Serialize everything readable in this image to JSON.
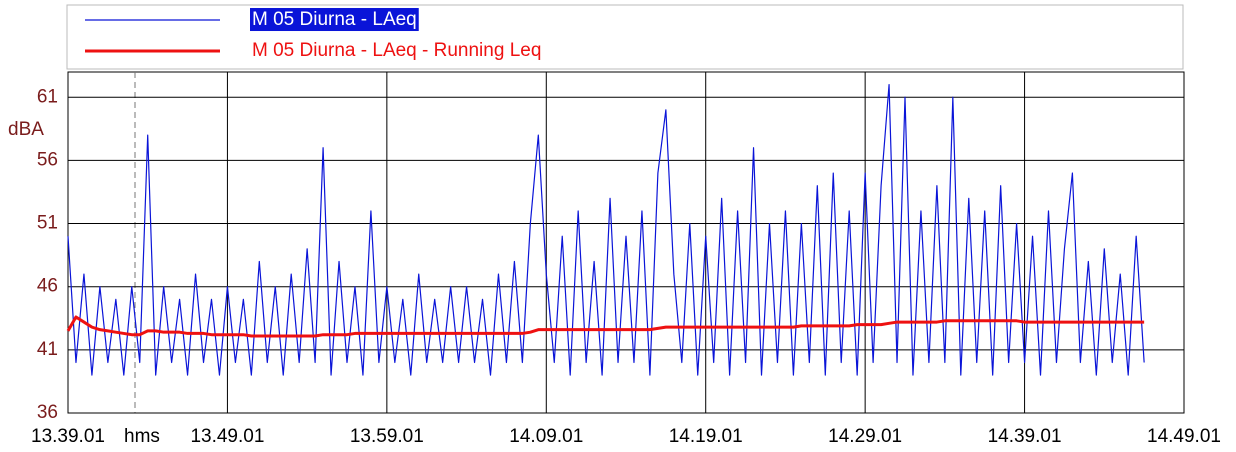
{
  "chart_data": {
    "type": "line",
    "x_label": "hms",
    "y_label": "dBA",
    "categories": [
      "13.39.01",
      null,
      null,
      null,
      null,
      null,
      null,
      null,
      null,
      null,
      null,
      null,
      null,
      null,
      null,
      null,
      null,
      null,
      null,
      null,
      "13.49.01",
      null,
      null,
      null,
      null,
      null,
      null,
      null,
      null,
      null,
      null,
      null,
      null,
      null,
      null,
      null,
      null,
      null,
      null,
      null,
      "13.59.01",
      null,
      null,
      null,
      null,
      null,
      null,
      null,
      null,
      null,
      null,
      null,
      null,
      null,
      null,
      null,
      null,
      null,
      null,
      null,
      "14.09.01",
      null,
      null,
      null,
      null,
      null,
      null,
      null,
      null,
      null,
      null,
      null,
      null,
      null,
      null,
      null,
      null,
      null,
      null,
      null,
      "14.19.01",
      null,
      null,
      null,
      null,
      null,
      null,
      null,
      null,
      null,
      null,
      null,
      null,
      null,
      null,
      null,
      null,
      null,
      null,
      null,
      "14.29.01",
      null,
      null,
      null,
      null,
      null,
      null,
      null,
      null,
      null,
      null,
      null,
      null,
      null,
      null,
      null,
      null,
      null,
      null,
      null,
      "14.39.01",
      null,
      null,
      null,
      null,
      null,
      null,
      null,
      null,
      null,
      null,
      null,
      null,
      null,
      null,
      null,
      null,
      null,
      null,
      null,
      "14.49.01"
    ],
    "series": [
      {
        "name": "M 05 Diurna - LAeq",
        "color": "#0a14d8",
        "values": [
          50,
          40,
          47,
          39,
          46,
          40,
          45,
          39,
          46,
          40,
          58,
          39,
          46,
          40,
          45,
          39,
          47,
          40,
          45,
          39,
          46,
          40,
          45,
          39,
          48,
          40,
          46,
          39,
          47,
          40,
          49,
          40,
          57,
          39,
          48,
          40,
          46,
          39,
          52,
          40,
          46,
          40,
          45,
          39,
          47,
          40,
          45,
          40,
          46,
          40,
          46,
          40,
          45,
          39,
          47,
          40,
          48,
          40,
          51,
          58,
          47,
          40,
          50,
          39,
          52,
          40,
          48,
          39,
          53,
          40,
          50,
          40,
          52,
          39,
          55,
          60,
          47,
          40,
          51,
          39,
          50,
          40,
          53,
          39,
          52,
          40,
          57,
          39,
          51,
          40,
          52,
          39,
          51,
          40,
          54,
          39,
          55,
          40,
          52,
          39,
          55,
          40,
          54,
          62,
          40,
          61,
          39,
          52,
          40,
          54,
          40,
          61,
          39,
          53,
          40,
          52,
          39,
          54,
          40,
          51,
          40,
          50,
          39,
          52,
          40,
          49,
          55,
          40,
          48,
          39,
          49,
          40,
          47,
          39,
          50,
          40,
          null,
          null,
          null,
          null,
          null
        ]
      },
      {
        "name": "M 05 Diurna - LAeq - Running Leq",
        "color": "#ee1111",
        "values": [
          42.5,
          43.6,
          43.2,
          42.8,
          42.6,
          42.5,
          42.4,
          42.3,
          42.2,
          42.2,
          42.5,
          42.5,
          42.4,
          42.4,
          42.4,
          42.3,
          42.3,
          42.3,
          42.2,
          42.2,
          42.2,
          42.2,
          42.2,
          42.1,
          42.1,
          42.1,
          42.1,
          42.1,
          42.1,
          42.1,
          42.1,
          42.1,
          42.2,
          42.2,
          42.2,
          42.2,
          42.3,
          42.3,
          42.3,
          42.3,
          42.3,
          42.3,
          42.3,
          42.3,
          42.3,
          42.3,
          42.3,
          42.3,
          42.3,
          42.3,
          42.3,
          42.3,
          42.3,
          42.3,
          42.3,
          42.3,
          42.3,
          42.3,
          42.4,
          42.6,
          42.6,
          42.6,
          42.6,
          42.6,
          42.6,
          42.6,
          42.6,
          42.6,
          42.6,
          42.6,
          42.6,
          42.6,
          42.6,
          42.6,
          42.7,
          42.8,
          42.8,
          42.8,
          42.8,
          42.8,
          42.8,
          42.8,
          42.8,
          42.8,
          42.8,
          42.8,
          42.8,
          42.8,
          42.8,
          42.8,
          42.8,
          42.8,
          42.9,
          42.9,
          42.9,
          42.9,
          42.9,
          42.9,
          42.9,
          43.0,
          43.0,
          43.0,
          43.0,
          43.1,
          43.2,
          43.2,
          43.2,
          43.2,
          43.2,
          43.2,
          43.3,
          43.3,
          43.3,
          43.3,
          43.3,
          43.3,
          43.3,
          43.3,
          43.3,
          43.3,
          43.2,
          43.2,
          43.2,
          43.2,
          43.2,
          43.2,
          43.2,
          43.2,
          43.2,
          43.2,
          43.2,
          43.2,
          43.2,
          43.2,
          43.2,
          43.2,
          null,
          null,
          null,
          null,
          null
        ]
      }
    ],
    "ylim": [
      36,
      63
    ],
    "yticks": [
      36,
      41,
      46,
      51,
      56,
      61
    ],
    "grid": true
  }
}
